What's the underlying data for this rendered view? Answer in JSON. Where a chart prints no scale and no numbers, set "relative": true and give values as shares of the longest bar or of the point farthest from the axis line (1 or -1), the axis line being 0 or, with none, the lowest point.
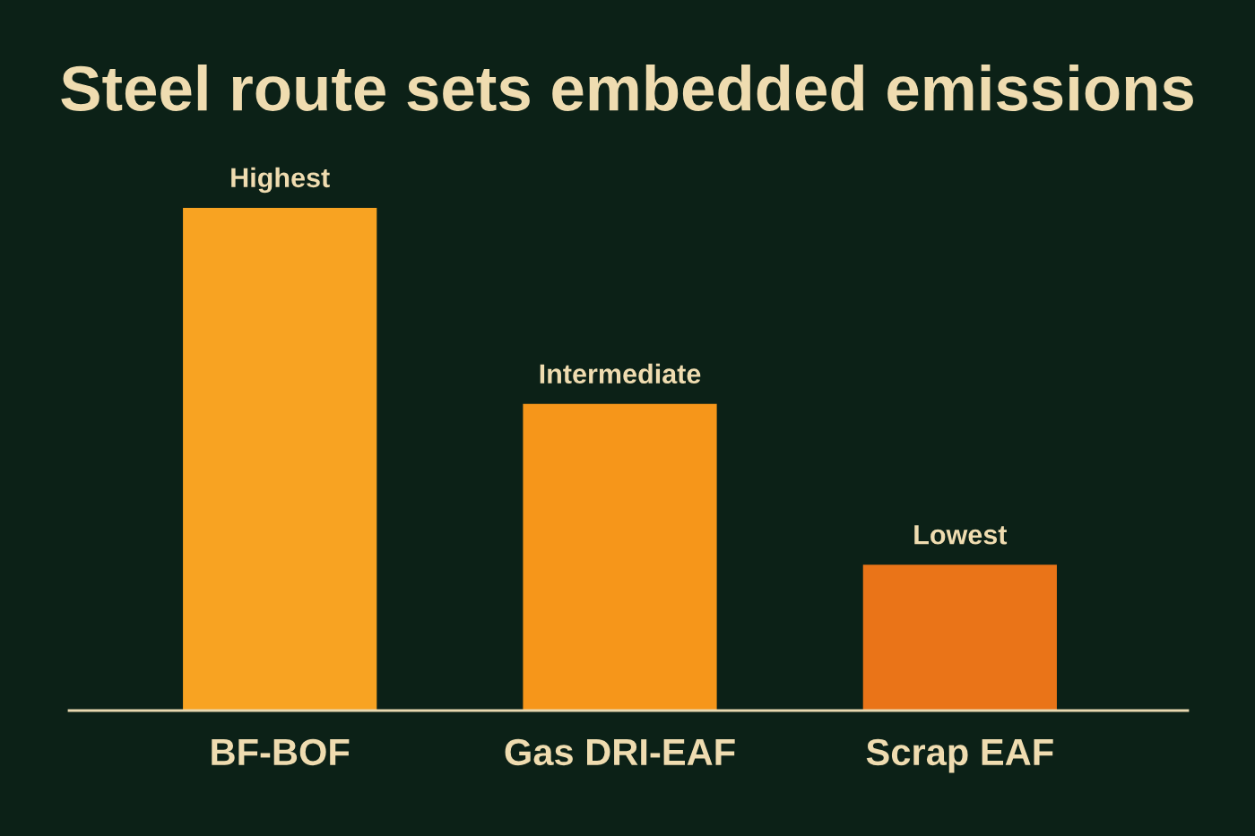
{
  "chart_data": {
    "type": "bar",
    "title": "Steel route sets embedded emissions",
    "categories": [
      "BF-BOF",
      "Gas DRI-EAF",
      "Scrap EAF"
    ],
    "values": [
      1,
      0.61,
      0.29
    ],
    "colors": [
      "#f8a322",
      "#f6961a",
      "#ea7418"
    ],
    "relative": true,
    "grid": false,
    "legend": false,
    "annotations": [
      {
        "text": "Highest",
        "x": "BF-BOF",
        "y": 1
      },
      {
        "text": "Intermediate",
        "x": "Gas DRI-EAF",
        "y": 0.61
      },
      {
        "text": "Lowest",
        "x": "Scrap EAF",
        "y": 0.29
      }
    ]
  }
}
